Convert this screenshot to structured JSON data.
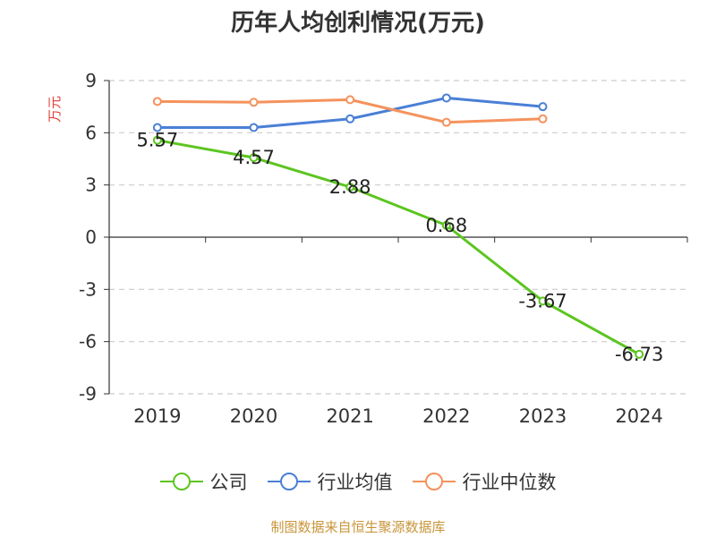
{
  "chart_data": {
    "type": "line",
    "title": "历年人均创利情况(万元)",
    "ylabel": "万元",
    "xlabel": "",
    "categories": [
      "2019",
      "2020",
      "2021",
      "2022",
      "2023",
      "2024"
    ],
    "ylim": [
      -9,
      9
    ],
    "yticks": [
      "9",
      "6",
      "3",
      "0",
      "-3",
      "-6",
      "-9"
    ],
    "grid": true,
    "legend_position": "bottom",
    "series": [
      {
        "name": "公司",
        "color": "#5cc520",
        "values": [
          5.57,
          4.57,
          2.88,
          0.68,
          -3.67,
          -6.73
        ],
        "labels": [
          "5.57",
          "4.57",
          "2.88",
          "0.68",
          "-3.67",
          "-6.73"
        ]
      },
      {
        "name": "行业均值",
        "color": "#4a7fd6",
        "values": [
          6.3,
          6.3,
          6.8,
          8.0,
          7.5,
          null
        ]
      },
      {
        "name": "行业中位数",
        "color": "#f5925c",
        "values": [
          7.8,
          7.75,
          7.9,
          6.6,
          6.8,
          null
        ]
      }
    ]
  },
  "source_note": "制图数据来自恒生聚源数据库"
}
